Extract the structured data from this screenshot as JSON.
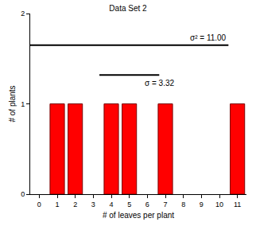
{
  "chart_data": {
    "type": "bar",
    "title": "Data Set 2",
    "x_label": "# of leaves per plant",
    "y_label": "# of plants",
    "x": [
      1,
      2,
      4,
      5,
      7,
      11
    ],
    "values": [
      1,
      1,
      1,
      1,
      1,
      1
    ],
    "color": "#ff0000",
    "xlim": [
      -0.5,
      11.5
    ],
    "xticks": [
      0,
      1,
      2,
      3,
      4,
      5,
      6,
      7,
      8,
      9,
      10,
      11
    ],
    "ylim": [
      0,
      2
    ],
    "yticks": [
      0,
      1,
      2
    ],
    "grid": false,
    "series": [
      {
        "name": "σ² = 11.00",
        "type": "line",
        "color": "#000000",
        "x": [
          -0.5,
          10.5
        ],
        "values": [
          1.65,
          1.65
        ]
      },
      {
        "name": "σ = 3.32",
        "type": "line",
        "color": "#000000",
        "x": [
          3.34,
          6.66
        ],
        "values": [
          1.32,
          1.32
        ]
      }
    ]
  }
}
